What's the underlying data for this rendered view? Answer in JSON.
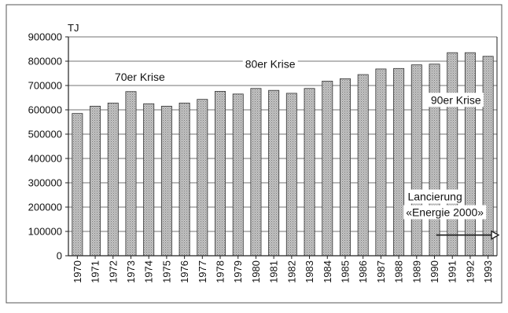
{
  "chart_data": {
    "type": "bar",
    "title": "",
    "xlabel": "",
    "ylabel": "TJ",
    "ylim": [
      0,
      900000
    ],
    "yticks": [
      0,
      100000,
      200000,
      300000,
      400000,
      500000,
      600000,
      700000,
      800000,
      900000
    ],
    "ytick_labels": [
      "0",
      "100000",
      "200000",
      "300000",
      "400000",
      "500000",
      "600000",
      "700000",
      "800000",
      "900000"
    ],
    "grid": true,
    "categories": [
      "1970",
      "1971",
      "1972",
      "1973",
      "1974",
      "1975",
      "1976",
      "1977",
      "1978",
      "1979",
      "1980",
      "1981",
      "1982",
      "1983",
      "1984",
      "1985",
      "1986",
      "1987",
      "1988",
      "1989",
      "1990",
      "1991",
      "1992",
      "1993"
    ],
    "values": [
      585000,
      615000,
      628000,
      675000,
      625000,
      615000,
      628000,
      643000,
      676000,
      665000,
      688000,
      680000,
      668000,
      688000,
      718000,
      728000,
      745000,
      768000,
      770000,
      785000,
      788000,
      835000,
      835000,
      820000
    ],
    "annotations": [
      {
        "text": "70er Krise"
      },
      {
        "text": "80er Krise"
      },
      {
        "text": "90er Krise"
      },
      {
        "text": "Lancierung"
      },
      {
        "text": "«Energie 2000»"
      }
    ],
    "colors": {
      "bar_fill": "#b4b4b4",
      "bar_stroke": "#333333",
      "axis": "#222222",
      "grid": "#444444",
      "frame": "#555555"
    }
  }
}
